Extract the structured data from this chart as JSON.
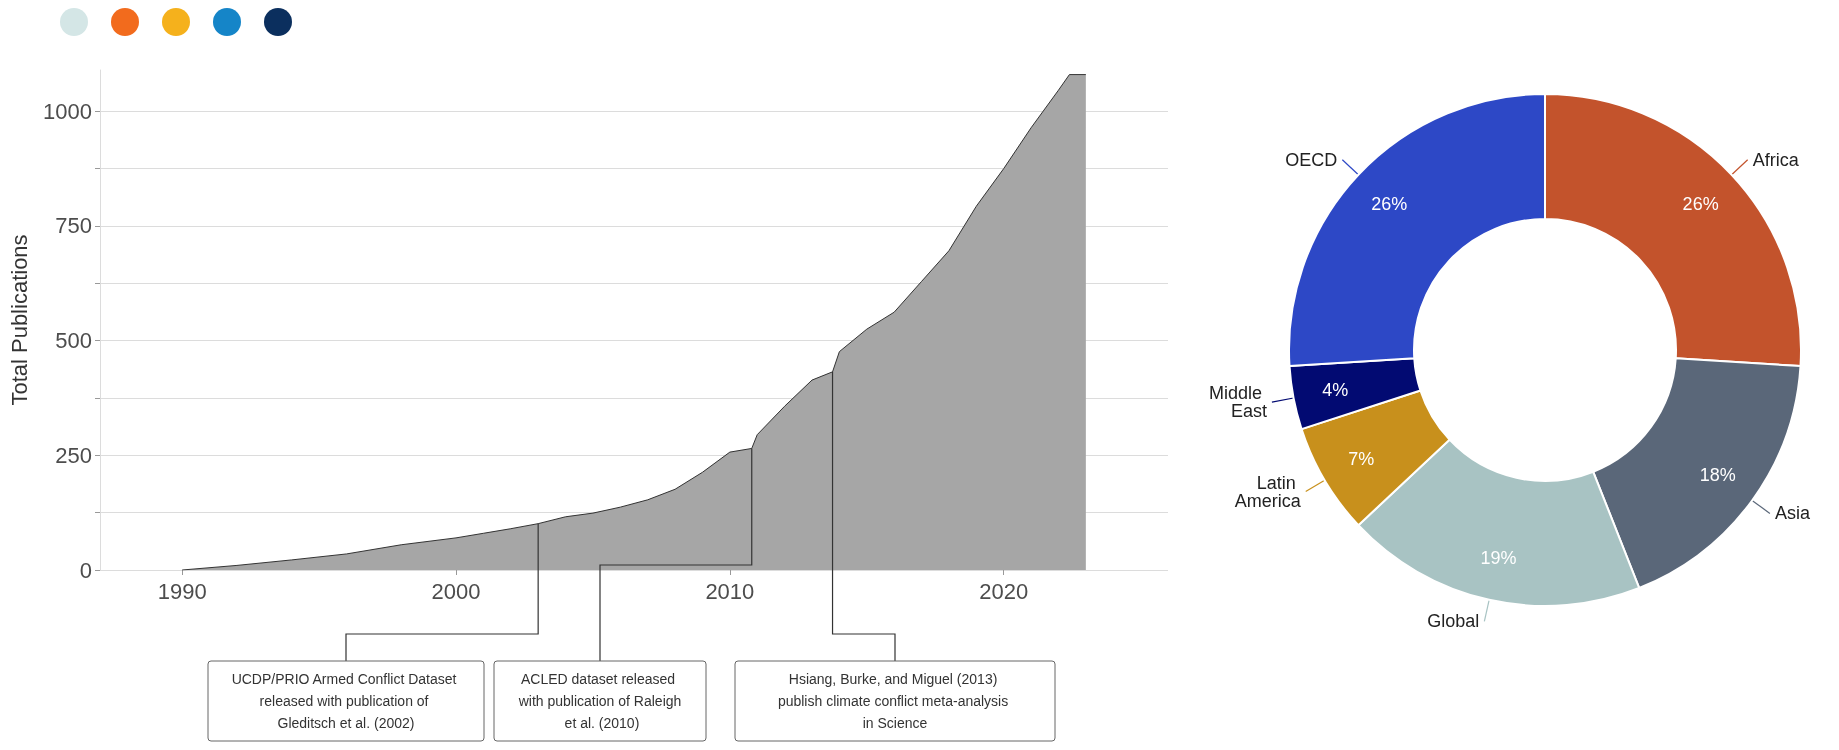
{
  "chart_data": [
    {
      "type": "area",
      "ylabel": "Total Publications",
      "x": [
        1990,
        1992,
        1994,
        1996,
        1998,
        2000,
        2001,
        2002,
        2003,
        2004,
        2005,
        2006,
        2007,
        2008,
        2009,
        2010,
        2010.8,
        2011,
        2012,
        2013,
        2013.75,
        2014,
        2015,
        2016,
        2017,
        2018,
        2019,
        2020,
        2021,
        2022,
        2022.4,
        2023
      ],
      "series": [
        {
          "color": "#a6a6a6",
          "values": [
            0,
            10,
            22,
            35,
            55,
            70,
            80,
            90,
            101,
            116,
            124,
            137,
            153,
            176,
            213,
            257,
            265,
            295,
            357,
            414,
            432,
            476,
            525,
            562,
            629,
            696,
            793,
            875,
            964,
            1046,
            1080,
            1080
          ]
        }
      ],
      "xlim": [
        1987,
        2026
      ],
      "xticks": [
        1990,
        2000,
        2010,
        2020
      ],
      "ylim": [
        0,
        1090
      ],
      "yticks": [
        0,
        {
          "value": 125,
          "label": null
        },
        250,
        {
          "value": 375,
          "label": null
        },
        500,
        {
          "value": 625,
          "label": null
        },
        750,
        {
          "value": 875,
          "label": null
        },
        1000
      ],
      "grid": "y",
      "annotations": [
        {
          "text": "UCDP/PRIO Armed Conflict Dataset released with publication of Gleditsch et al. (2002)",
          "x": 2003,
          "y": 101
        },
        {
          "text": "ACLED dataset released with publication of Raleigh et al. (2010)",
          "x": 2010.8,
          "y": 265
        },
        {
          "text": "Hsiang, Burke, and Miguel (2013) publish climate conflict meta-analysis in Science",
          "x": 2013.75,
          "y": 432
        }
      ]
    },
    {
      "type": "donut",
      "categories": [
        "Africa",
        "Asia",
        "Global",
        "Latin America",
        "Middle East",
        "OECD"
      ],
      "values": [
        26,
        18,
        19,
        7,
        4,
        26
      ],
      "value_labels": [
        "26%",
        "18%",
        "19%",
        "7%",
        "4%",
        "26%"
      ],
      "colors": [
        "#c3532c",
        "#5a6779",
        "#a8c3c3",
        "#c8901c",
        "#020a72",
        "#2d48c6"
      ]
    }
  ]
}
